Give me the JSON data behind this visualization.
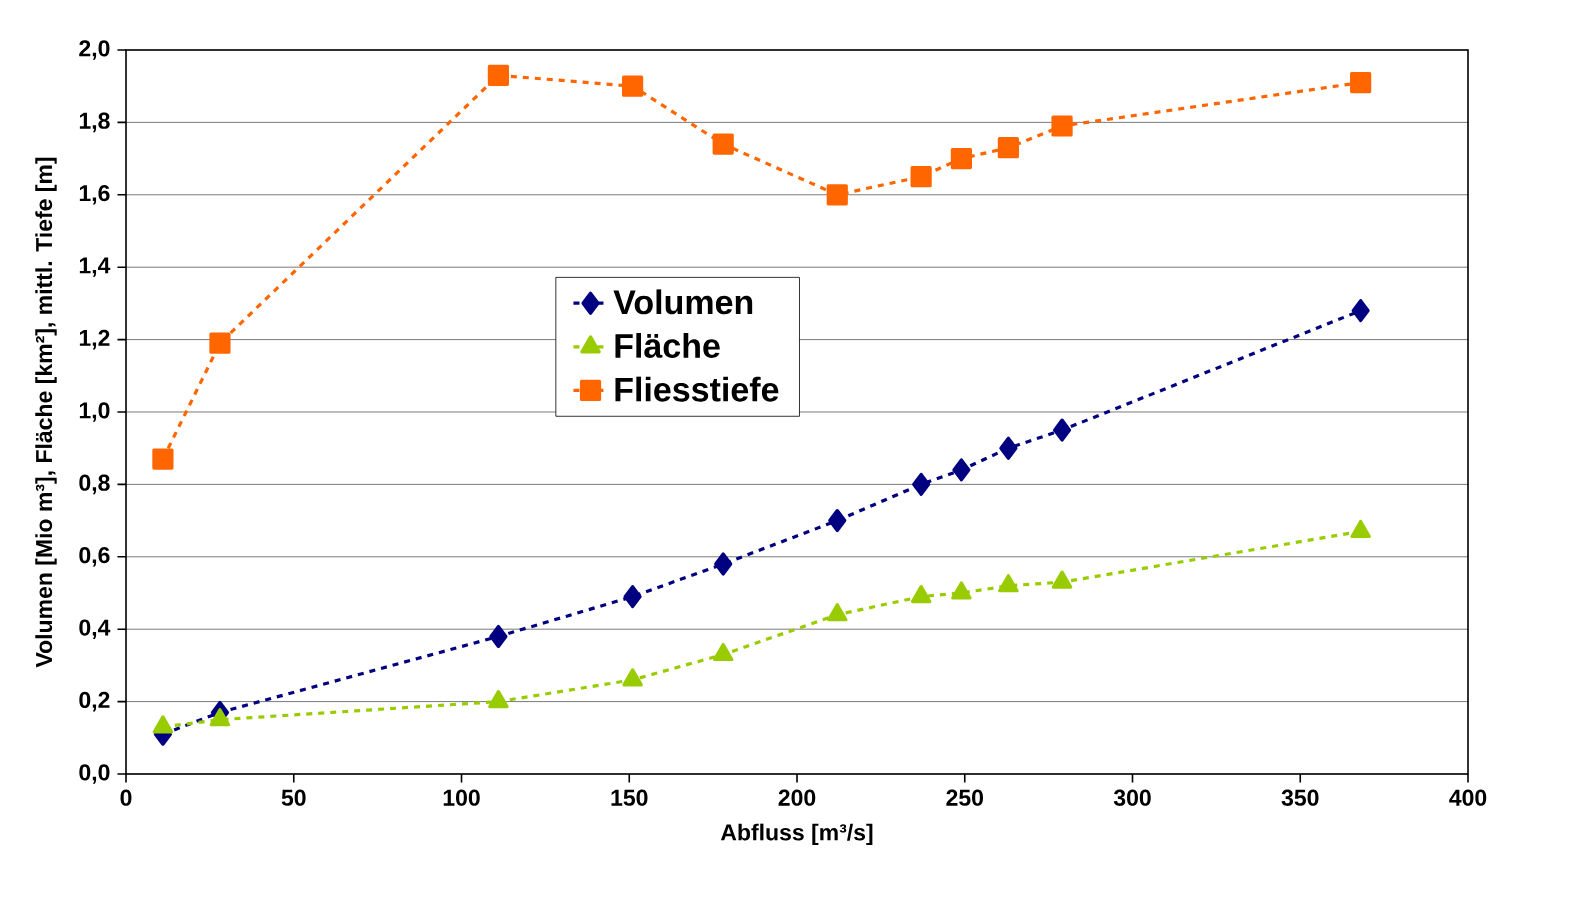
{
  "chart_data": {
    "type": "line",
    "xlabel": "Abfluss [m³/s]",
    "ylabel": "Volumen [Mio m³], Fläche [km²], mittl. Tiefe [m]",
    "x": [
      11,
      28,
      111,
      151,
      178,
      212,
      237,
      249,
      263,
      279,
      368
    ],
    "series": [
      {
        "name": "Volumen",
        "color": "#000080",
        "marker": "diamond",
        "values": [
          0.11,
          0.17,
          0.38,
          0.49,
          0.58,
          0.7,
          0.8,
          0.84,
          0.9,
          0.95,
          1.28
        ]
      },
      {
        "name": "Fläche",
        "color": "#99cc00",
        "marker": "triangle",
        "values": [
          0.13,
          0.15,
          0.2,
          0.26,
          0.33,
          0.44,
          0.49,
          0.5,
          0.52,
          0.53,
          0.67
        ]
      },
      {
        "name": "Fliesstiefe",
        "color": "#ff6600",
        "marker": "square",
        "values": [
          0.87,
          1.19,
          1.93,
          1.9,
          1.74,
          1.6,
          1.65,
          1.7,
          1.73,
          1.79,
          1.91
        ]
      }
    ],
    "xlim": [
      0,
      400
    ],
    "xticks": [
      0,
      50,
      100,
      150,
      200,
      250,
      300,
      350,
      400
    ],
    "ylim": [
      0,
      2
    ],
    "yticks": [
      {
        "value": 0,
        "label": "0,0"
      },
      {
        "value": 0.2,
        "label": "0,2"
      },
      {
        "value": 0.4,
        "label": "0,4"
      },
      {
        "value": 0.6,
        "label": "0,6"
      },
      {
        "value": 0.8,
        "label": "0,8"
      },
      {
        "value": 1,
        "label": "1,0"
      },
      {
        "value": 1.2,
        "label": "1,2"
      },
      {
        "value": 1.4,
        "label": "1,4"
      },
      {
        "value": 1.6,
        "label": "1,6"
      },
      {
        "value": 1.8,
        "label": "1,8"
      },
      {
        "value": 2,
        "label": "2,0"
      }
    ],
    "grid": "y",
    "legend": "center",
    "line_style": "dashed"
  }
}
